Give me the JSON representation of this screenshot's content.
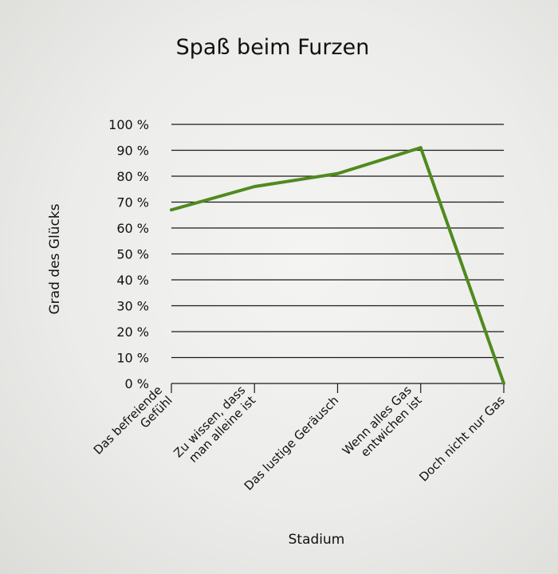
{
  "chart_data": {
    "type": "line",
    "title": "Spaß beim Furzen",
    "xlabel": "Stadium",
    "ylabel": "Grad des Glücks",
    "categories": [
      [
        "Das befreiende",
        "Gefühl"
      ],
      [
        "Zu wissen, dass",
        "man alleine ist"
      ],
      [
        "Das lustige Geräusch"
      ],
      [
        "Wenn alles Gas",
        "entwichen ist"
      ],
      [
        "Doch nicht nur Gas"
      ]
    ],
    "values": [
      67,
      76,
      81,
      91,
      0
    ],
    "ylim": [
      0,
      100
    ],
    "yticks": [
      "0 %",
      "10 %",
      "20 %",
      "30 %",
      "40 %",
      "50 %",
      "60 %",
      "70 %",
      "80 %",
      "90 %",
      "100 %"
    ],
    "grid": true,
    "line_color": "#4f8a1f"
  }
}
